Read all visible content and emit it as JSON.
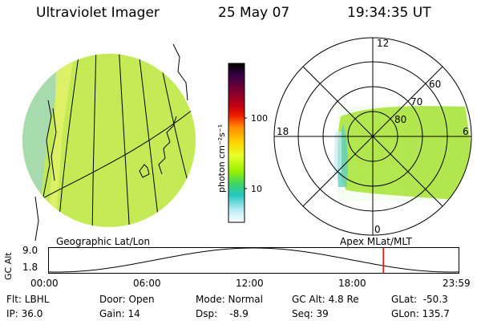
{
  "header": {
    "title": "Ultraviolet Imager",
    "date": "25 May 07",
    "time": "19:34:35 UT"
  },
  "colorbar": {
    "unit_label": "photon cm⁻²s⁻¹",
    "tick_100": "100",
    "tick_10": "10",
    "colors": [
      "#000000",
      "#3b004a",
      "#7a0030",
      "#c40010",
      "#f21f00",
      "#ff8a00",
      "#ffd600",
      "#e9ff2a",
      "#98f000",
      "#3bd46a",
      "#26c7c2",
      "#b6ecf5",
      "#ffffff"
    ]
  },
  "left_panel": {
    "caption": "Geographic Lat/Lon",
    "image_color": "#bfe85a"
  },
  "right_panel": {
    "caption": "Apex MLat/MLT",
    "top_label": "12",
    "left_label": "18",
    "right_label": "6",
    "bottom_label": "0",
    "ring_60": "60",
    "ring_70": "70",
    "ring_80": "80"
  },
  "altitude_plot": {
    "axis_label": "GC Alt",
    "ymax": "9.0",
    "ymin": "1.8",
    "x_ticks": [
      "00:00",
      "06:00",
      "12:00",
      "18:00",
      "23:59"
    ],
    "cursor_time_hours": 19.58,
    "cursor_color": "#ff0000"
  },
  "footer": {
    "flt": "Flt: LBHL",
    "ip": "IP: 36.0",
    "door": "Door: Open",
    "gain": "Gain: 14",
    "mode": "Mode: Normal",
    "dsp": "Dsp:    -8.9",
    "gcalt": "GC Alt: 4.8 Re",
    "seq": "Seq: 39",
    "glat": "GLat:  -50.3",
    "glon": "GLon: 135.7"
  }
}
